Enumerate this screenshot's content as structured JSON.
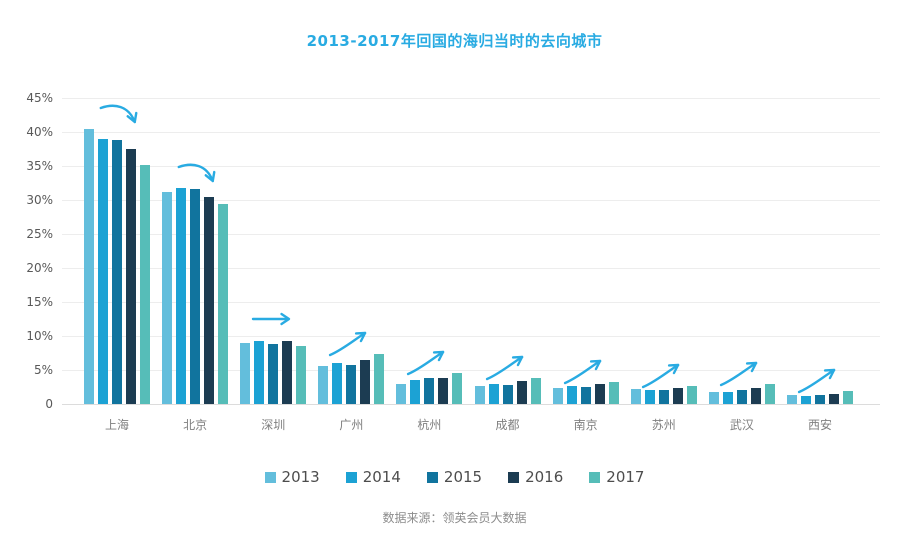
{
  "chart_data": {
    "type": "bar",
    "title": "2013-2017年回国的海归当时的去向城市",
    "title_color": "#29ABE2",
    "categories": [
      "上海",
      "北京",
      "深圳",
      "广州",
      "杭州",
      "成都",
      "南京",
      "苏州",
      "武汉",
      "西安"
    ],
    "series": [
      {
        "name": "2013",
        "color": "#63BEDC",
        "values": [
          40.5,
          31.2,
          9.0,
          5.6,
          3.0,
          2.6,
          2.3,
          2.2,
          1.8,
          1.3
        ]
      },
      {
        "name": "2014",
        "color": "#1CA2D4",
        "values": [
          39.0,
          31.7,
          9.2,
          6.0,
          3.5,
          3.0,
          2.6,
          2.1,
          1.7,
          1.2
        ]
      },
      {
        "name": "2015",
        "color": "#11749E",
        "values": [
          38.9,
          31.6,
          8.9,
          5.8,
          3.9,
          2.8,
          2.5,
          2.1,
          2.0,
          1.3
        ]
      },
      {
        "name": "2016",
        "color": "#1C3C52",
        "values": [
          37.5,
          30.5,
          9.2,
          6.5,
          3.8,
          3.4,
          2.9,
          2.3,
          2.4,
          1.5
        ]
      },
      {
        "name": "2017",
        "color": "#56BDB8",
        "values": [
          35.1,
          29.4,
          8.6,
          7.4,
          4.5,
          3.8,
          3.3,
          2.7,
          2.9,
          1.9
        ]
      }
    ],
    "trends": [
      "down",
      "down",
      "flat",
      "up",
      "up",
      "up",
      "up",
      "up",
      "up",
      "up"
    ],
    "trend_arrow_color": "#29ABE2",
    "ylim": [
      0,
      45
    ],
    "yticks": [
      "45%",
      "40%",
      "35%",
      "30%",
      "25%",
      "20%",
      "15%",
      "10%",
      "5%",
      "0"
    ],
    "grid": true,
    "legend_position": "bottom",
    "source": "数据来源：领英会员大数据"
  }
}
